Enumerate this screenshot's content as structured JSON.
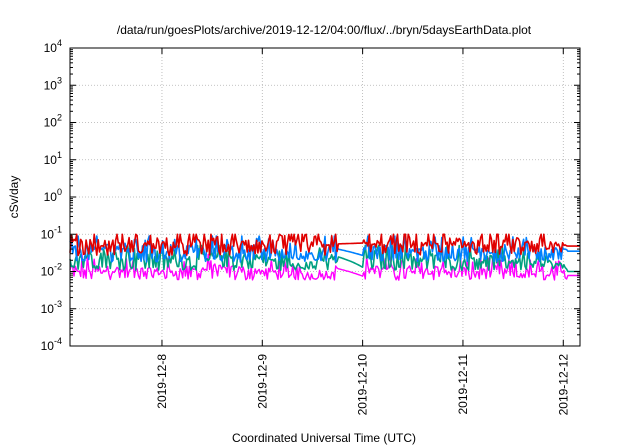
{
  "chart_data": {
    "type": "line",
    "title": "/data/run/goesPlots/archive/2019-12-12/04:00/flux/../bryn/5daysEarthData.plot",
    "xlabel": "Coordinated Universal Time (UTC)",
    "ylabel": "cSv/day",
    "x_range": [
      "2019-12-07T02:00",
      "2019-12-12T04:00"
    ],
    "x_ticks": [
      "2019-12-8",
      "2019-12-9",
      "2019-12-10",
      "2019-12-11",
      "2019-12-12"
    ],
    "x_tick_dates": [
      "2019-12-08",
      "2019-12-09",
      "2019-12-10",
      "2019-12-11",
      "2019-12-12"
    ],
    "y_scale": "log",
    "ylim": [
      0.0001,
      10000
    ],
    "y_ticks": [
      {
        "base": "10",
        "exp": "-4",
        "value": 0.0001
      },
      {
        "base": "10",
        "exp": "-3",
        "value": 0.001
      },
      {
        "base": "10",
        "exp": "-2",
        "value": 0.01
      },
      {
        "base": "10",
        "exp": "-1",
        "value": 0.1
      },
      {
        "base": "10",
        "exp": "0",
        "value": 1
      },
      {
        "base": "10",
        "exp": "1",
        "value": 10
      },
      {
        "base": "10",
        "exp": "2",
        "value": 100
      },
      {
        "base": "10",
        "exp": "3",
        "value": 1000
      },
      {
        "base": "10",
        "exp": "4",
        "value": 10000
      }
    ],
    "grid": true,
    "legend": "none",
    "data_gap": [
      "2019-12-09T18:00",
      "2019-12-10T00:00"
    ],
    "series": [
      {
        "color": "#ff00ff",
        "level": 0.012,
        "low": 0.0065,
        "high": 0.03,
        "gap_end": 0.0075,
        "end": 0.0078,
        "values": [
          0.012,
          0.011,
          0.01,
          0.012,
          0.011,
          0.0075,
          0.011,
          0.012,
          0.011,
          0.01,
          0.009,
          0.0078
        ]
      },
      {
        "color": "#00a080",
        "level": 0.025,
        "low": 0.012,
        "high": 0.05,
        "gap_end": 0.013,
        "end": 0.01,
        "values": [
          0.025,
          0.028,
          0.022,
          0.025,
          0.024,
          0.013,
          0.025,
          0.026,
          0.024,
          0.022,
          0.02,
          0.01
        ]
      },
      {
        "color": "#0080ff",
        "level": 0.04,
        "low": 0.02,
        "high": 0.09,
        "gap_end": 0.027,
        "end": 0.035,
        "values": [
          0.04,
          0.045,
          0.038,
          0.042,
          0.04,
          0.027,
          0.045,
          0.042,
          0.04,
          0.038,
          0.036,
          0.035
        ]
      },
      {
        "color": "#e00000",
        "level": 0.055,
        "low": 0.03,
        "high": 0.1,
        "gap_end": 0.058,
        "end": 0.048,
        "values": [
          0.06,
          0.055,
          0.055,
          0.06,
          0.055,
          0.058,
          0.06,
          0.055,
          0.055,
          0.058,
          0.052,
          0.048
        ]
      }
    ]
  }
}
